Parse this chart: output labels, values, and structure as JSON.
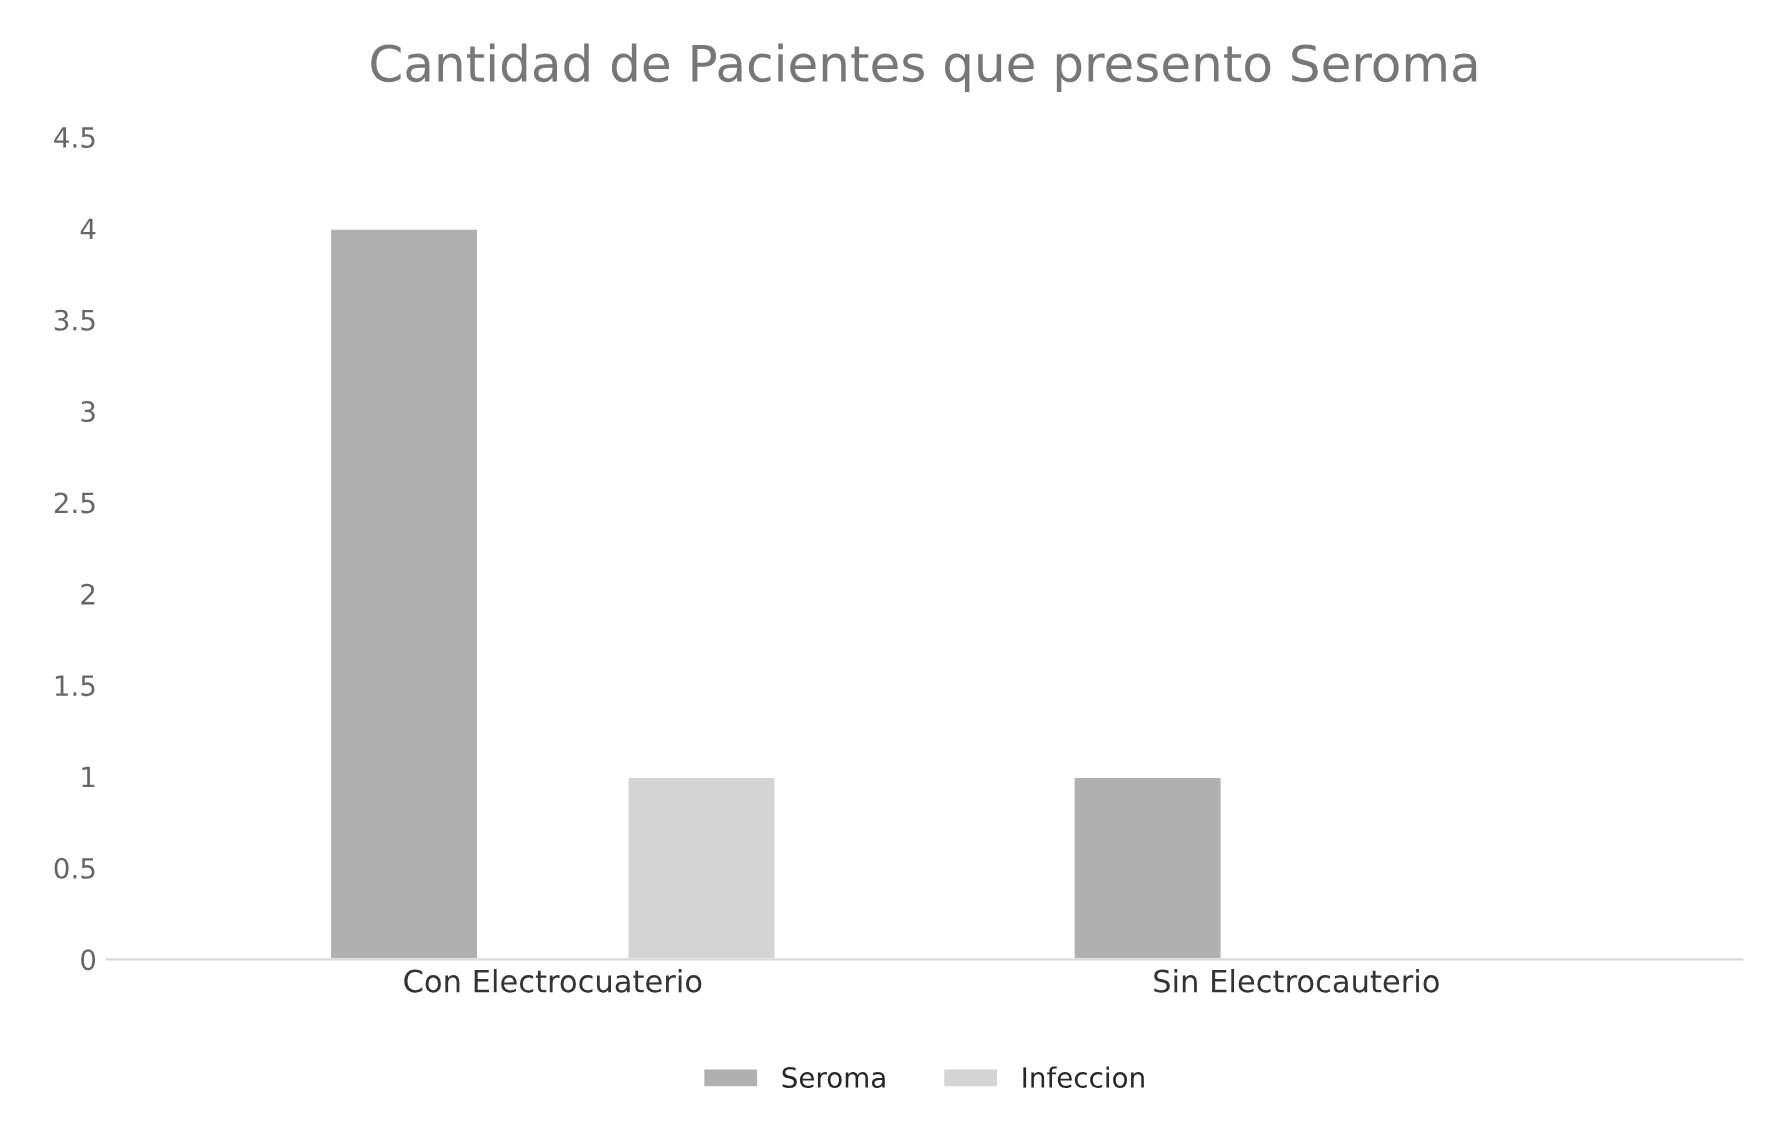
{
  "chart_data": {
    "type": "bar",
    "title": "Cantidad de Pacientes que presento Seroma",
    "categories": [
      "Con Electrocuaterio",
      "Sin Electrocauterio"
    ],
    "series": [
      {
        "name": "Seroma",
        "color": "#b0b0b0",
        "values": [
          4,
          1
        ]
      },
      {
        "name": "Infeccion",
        "color": "#d4d4d4",
        "values": [
          1,
          null
        ]
      }
    ],
    "ylim": [
      0,
      4.5
    ],
    "yticks": [
      0,
      0.5,
      1,
      1.5,
      2,
      2.5,
      3,
      3.5,
      4,
      4.5
    ],
    "grid": false,
    "legend": "bottom"
  }
}
